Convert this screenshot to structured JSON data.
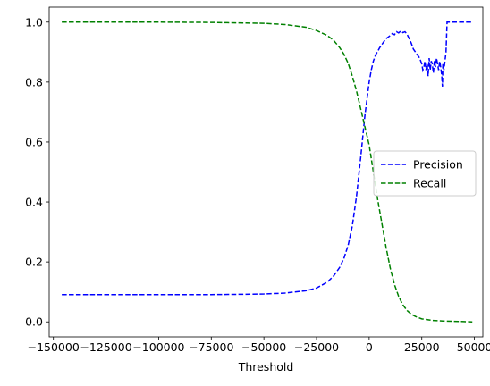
{
  "chart_data": {
    "type": "line",
    "title": "",
    "xlabel": "Threshold",
    "ylabel": "",
    "xlim": [
      -152000,
      54000
    ],
    "ylim": [
      -0.05,
      1.05
    ],
    "xticks": [
      -150000,
      -125000,
      -100000,
      -75000,
      -50000,
      -25000,
      0,
      25000,
      50000
    ],
    "xtick_labels": [
      "−150000",
      "−125000",
      "−100000",
      "−75000",
      "−50000",
      "−25000",
      "0",
      "25000",
      "50000"
    ],
    "yticks": [
      0.0,
      0.2,
      0.4,
      0.6,
      0.8,
      1.0
    ],
    "ytick_labels": [
      "0.0",
      "0.2",
      "0.4",
      "0.6",
      "0.8",
      "1.0"
    ],
    "grid": false,
    "legend": {
      "position": "center-right",
      "entries": [
        "Precision",
        "Recall"
      ]
    },
    "series": [
      {
        "name": "Precision",
        "color": "#0000ff",
        "line_style": "dashed",
        "points": [
          [
            -146000,
            0.091
          ],
          [
            -125000,
            0.091
          ],
          [
            -100000,
            0.091
          ],
          [
            -75000,
            0.091
          ],
          [
            -60000,
            0.092
          ],
          [
            -50000,
            0.093
          ],
          [
            -40000,
            0.096
          ],
          [
            -30000,
            0.104
          ],
          [
            -25000,
            0.113
          ],
          [
            -20000,
            0.132
          ],
          [
            -17000,
            0.152
          ],
          [
            -14000,
            0.182
          ],
          [
            -12000,
            0.212
          ],
          [
            -10000,
            0.255
          ],
          [
            -8000,
            0.32
          ],
          [
            -6000,
            0.42
          ],
          [
            -4000,
            0.55
          ],
          [
            -2000,
            0.69
          ],
          [
            0,
            0.8
          ],
          [
            1000,
            0.84
          ],
          [
            2000,
            0.87
          ],
          [
            3000,
            0.89
          ],
          [
            4000,
            0.902
          ],
          [
            5000,
            0.915
          ],
          [
            6000,
            0.925
          ],
          [
            7000,
            0.935
          ],
          [
            8000,
            0.945
          ],
          [
            9000,
            0.95
          ],
          [
            10000,
            0.955
          ],
          [
            11000,
            0.962
          ],
          [
            12000,
            0.958
          ],
          [
            13000,
            0.968
          ],
          [
            14000,
            0.964
          ],
          [
            15000,
            0.97
          ],
          [
            16000,
            0.965
          ],
          [
            17000,
            0.968
          ],
          [
            18000,
            0.96
          ],
          [
            19000,
            0.945
          ],
          [
            20000,
            0.93
          ],
          [
            21000,
            0.91
          ],
          [
            22000,
            0.9
          ],
          [
            23000,
            0.89
          ],
          [
            24000,
            0.88
          ],
          [
            25000,
            0.86
          ],
          [
            25500,
            0.84
          ],
          [
            26000,
            0.85
          ],
          [
            26500,
            0.87
          ],
          [
            27000,
            0.84
          ],
          [
            27500,
            0.86
          ],
          [
            28000,
            0.82
          ],
          [
            28500,
            0.88
          ],
          [
            29000,
            0.84
          ],
          [
            29500,
            0.87
          ],
          [
            30000,
            0.86
          ],
          [
            30500,
            0.83
          ],
          [
            31000,
            0.87
          ],
          [
            31500,
            0.85
          ],
          [
            32000,
            0.88
          ],
          [
            32500,
            0.86
          ],
          [
            33000,
            0.84
          ],
          [
            33500,
            0.87
          ],
          [
            34000,
            0.85
          ],
          [
            34500,
            0.82
          ],
          [
            34800,
            0.785
          ],
          [
            35000,
            0.86
          ],
          [
            35500,
            0.84
          ],
          [
            36000,
            0.87
          ],
          [
            36500,
            0.9
          ],
          [
            37000,
            1.0
          ],
          [
            40000,
            1.0
          ],
          [
            45000,
            1.0
          ],
          [
            49000,
            1.0
          ]
        ]
      },
      {
        "name": "Recall",
        "color": "#008000",
        "line_style": "dashed",
        "points": [
          [
            -146000,
            1.0
          ],
          [
            -100000,
            1.0
          ],
          [
            -75000,
            0.999
          ],
          [
            -50000,
            0.996
          ],
          [
            -40000,
            0.992
          ],
          [
            -30000,
            0.983
          ],
          [
            -25000,
            0.972
          ],
          [
            -20000,
            0.956
          ],
          [
            -17000,
            0.94
          ],
          [
            -14000,
            0.915
          ],
          [
            -12000,
            0.893
          ],
          [
            -10000,
            0.863
          ],
          [
            -8000,
            0.82
          ],
          [
            -6000,
            0.77
          ],
          [
            -4000,
            0.71
          ],
          [
            -2000,
            0.65
          ],
          [
            0,
            0.59
          ],
          [
            2000,
            0.5
          ],
          [
            4000,
            0.41
          ],
          [
            6000,
            0.33
          ],
          [
            8000,
            0.25
          ],
          [
            10000,
            0.18
          ],
          [
            12000,
            0.125
          ],
          [
            14000,
            0.085
          ],
          [
            16000,
            0.057
          ],
          [
            18000,
            0.038
          ],
          [
            20000,
            0.026
          ],
          [
            22000,
            0.018
          ],
          [
            25000,
            0.01
          ],
          [
            30000,
            0.005
          ],
          [
            35000,
            0.003
          ],
          [
            40000,
            0.002
          ],
          [
            45000,
            0.001
          ],
          [
            49000,
            0.0
          ]
        ]
      }
    ]
  }
}
